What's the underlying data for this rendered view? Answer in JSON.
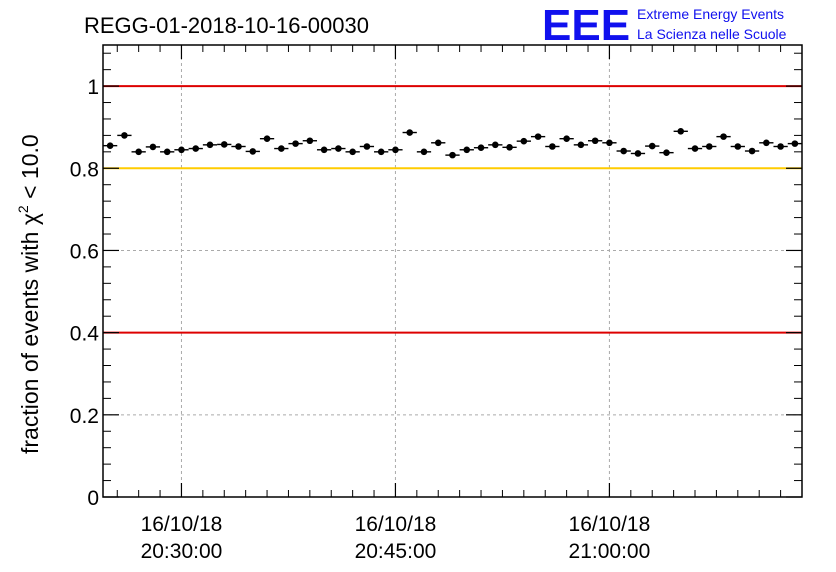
{
  "title": "REGG-01-2018-10-16-00030",
  "logo": {
    "mark": "EEE",
    "line1": "Extreme Energy Events",
    "line2": "La Scienza nelle Scuole"
  },
  "colors": {
    "red_line": "#dd0000",
    "yellow_line": "#ffcc00",
    "logo": "#1010ee",
    "grid": "#aaaaaa"
  },
  "chart_data": {
    "type": "scatter",
    "title": "REGG-01-2018-10-16-00030",
    "ylabel_prefix": "fraction of events with",
    "ylabel_symbol": "χ",
    "ylabel_exponent": "2",
    "ylabel_suffix": "< 10.0",
    "xlabel": "",
    "ylim": [
      0,
      1.1
    ],
    "x_minutes_range": [
      0,
      98
    ],
    "y_ticks": [
      {
        "value": 0,
        "label": "0"
      },
      {
        "value": 0.2,
        "label": "0.2"
      },
      {
        "value": 0.4,
        "label": "0.4"
      },
      {
        "value": 0.6,
        "label": "0.6"
      },
      {
        "value": 0.8,
        "label": "0.8"
      },
      {
        "value": 1.0,
        "label": "1"
      }
    ],
    "x_ticks": [
      {
        "minutes": 11,
        "date": "16/10/18",
        "time": "20:30:00"
      },
      {
        "minutes": 41,
        "date": "16/10/18",
        "time": "20:45:00"
      },
      {
        "minutes": 71,
        "date": "16/10/18",
        "time": "21:00:00"
      }
    ],
    "reference_lines": [
      {
        "value": 1.0,
        "color": "red"
      },
      {
        "value": 0.8,
        "color": "yellow"
      },
      {
        "value": 0.4,
        "color": "red"
      }
    ],
    "x_error_minutes": 1,
    "y_error": 0.007,
    "series": [
      {
        "name": "fraction",
        "x": [
          1,
          3,
          5,
          7,
          9,
          11,
          13,
          15,
          17,
          19,
          21,
          23,
          25,
          27,
          29,
          31,
          33,
          35,
          37,
          39,
          41,
          43,
          45,
          47,
          49,
          51,
          53,
          55,
          57,
          59,
          61,
          63,
          65,
          67,
          69,
          71,
          73,
          75,
          77,
          79,
          81,
          83,
          85,
          87,
          89,
          91,
          93,
          95,
          97
        ],
        "y": [
          0.855,
          0.88,
          0.84,
          0.852,
          0.84,
          0.845,
          0.848,
          0.857,
          0.858,
          0.853,
          0.841,
          0.872,
          0.848,
          0.86,
          0.867,
          0.845,
          0.848,
          0.84,
          0.853,
          0.84,
          0.845,
          0.887,
          0.84,
          0.862,
          0.832,
          0.845,
          0.85,
          0.857,
          0.851,
          0.866,
          0.877,
          0.853,
          0.872,
          0.857,
          0.867,
          0.862,
          0.842,
          0.836,
          0.854,
          0.838,
          0.89,
          0.848,
          0.853,
          0.877,
          0.853,
          0.842,
          0.862,
          0.853,
          0.86
        ]
      }
    ]
  }
}
